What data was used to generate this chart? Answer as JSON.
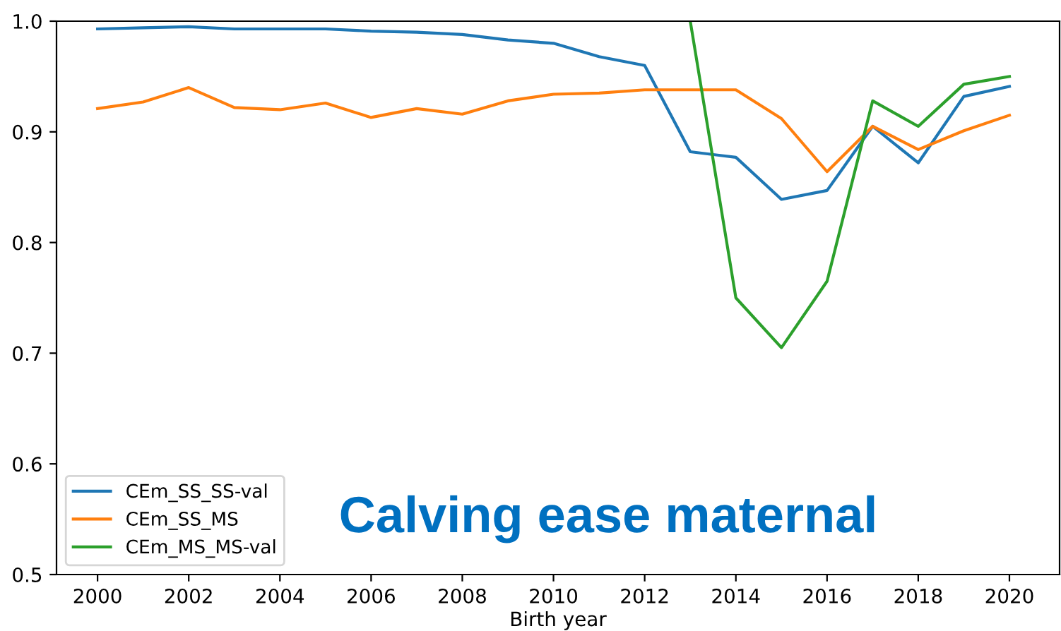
{
  "chart_data": {
    "type": "line",
    "xlabel": "Birth year",
    "x": [
      2000,
      2001,
      2002,
      2003,
      2004,
      2005,
      2006,
      2007,
      2008,
      2009,
      2010,
      2011,
      2012,
      2013,
      2014,
      2015,
      2016,
      2017,
      2018,
      2019,
      2020
    ],
    "series": [
      {
        "name": "CEm_SS_SS-val",
        "color": "#1f77b4",
        "values": [
          0.993,
          0.994,
          0.995,
          0.993,
          0.993,
          0.993,
          0.991,
          0.99,
          0.988,
          0.983,
          0.98,
          0.968,
          0.96,
          0.882,
          0.877,
          0.839,
          0.847,
          0.905,
          0.872,
          0.932,
          0.941
        ]
      },
      {
        "name": "CEm_SS_MS",
        "color": "#ff7f0e",
        "values": [
          0.921,
          0.927,
          0.94,
          0.922,
          0.92,
          0.926,
          0.913,
          0.921,
          0.916,
          0.928,
          0.934,
          0.935,
          0.938,
          0.938,
          0.938,
          0.912,
          0.864,
          0.905,
          0.884,
          0.901,
          0.915
        ]
      },
      {
        "name": "CEm_MS_MS-val",
        "color": "#2ca02c",
        "values": [
          null,
          null,
          null,
          null,
          null,
          null,
          null,
          null,
          null,
          null,
          null,
          null,
          null,
          1.0,
          0.75,
          0.705,
          0.765,
          0.928,
          0.905,
          0.943,
          0.95
        ]
      }
    ],
    "xlim": [
      1999.1,
      2021.1
    ],
    "ylim": [
      0.5,
      1.0
    ],
    "xticks": [
      2000,
      2002,
      2004,
      2006,
      2008,
      2010,
      2012,
      2014,
      2016,
      2018,
      2020
    ],
    "yticks": [
      0.5,
      0.6,
      0.7,
      0.8,
      0.9,
      {
        "value": 1,
        "label": "1.0"
      }
    ],
    "legend": "bottom left",
    "grid": false,
    "annotations": [
      "Calving ease maternal"
    ]
  }
}
